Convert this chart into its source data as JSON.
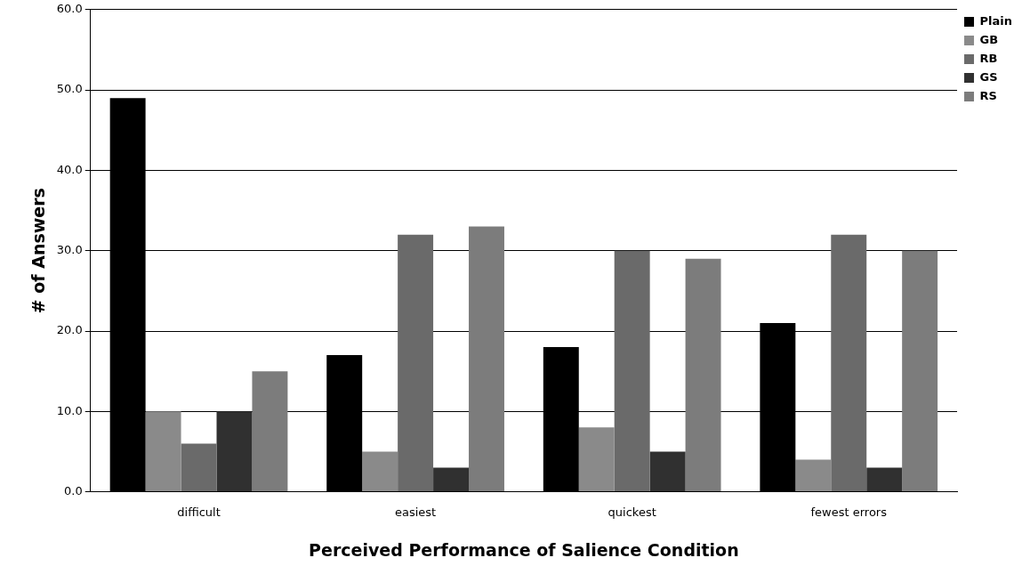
{
  "chart_data": {
    "type": "bar",
    "xlabel": "Perceived Performance of Salience Condition",
    "ylabel": "# of Answers",
    "categories": [
      "difficult",
      "easiest",
      "quickest",
      "fewest errors"
    ],
    "series": [
      {
        "name": "Plain",
        "color": "#000000",
        "values": [
          49,
          17,
          18,
          21
        ]
      },
      {
        "name": "GB",
        "color": "#8a8a8a",
        "values": [
          10,
          5,
          8,
          4
        ]
      },
      {
        "name": "RB",
        "color": "#6a6a6a",
        "values": [
          6,
          32,
          30,
          32
        ]
      },
      {
        "name": "GS",
        "color": "#303030",
        "values": [
          10,
          3,
          5,
          3
        ]
      },
      {
        "name": "RS",
        "color": "#7c7c7c",
        "values": [
          15,
          33,
          29,
          30
        ]
      }
    ],
    "ylim": [
      0,
      60
    ],
    "yticks": [
      {
        "value": 0,
        "label": "0.0"
      },
      {
        "value": 10,
        "label": "10.0"
      },
      {
        "value": 20,
        "label": "20.0"
      },
      {
        "value": 30,
        "label": "30.0"
      },
      {
        "value": 40,
        "label": "40.0"
      },
      {
        "value": 50,
        "label": "50.0"
      },
      {
        "value": 60,
        "label": "60.0"
      }
    ],
    "grid": "y",
    "legend": "top right"
  }
}
